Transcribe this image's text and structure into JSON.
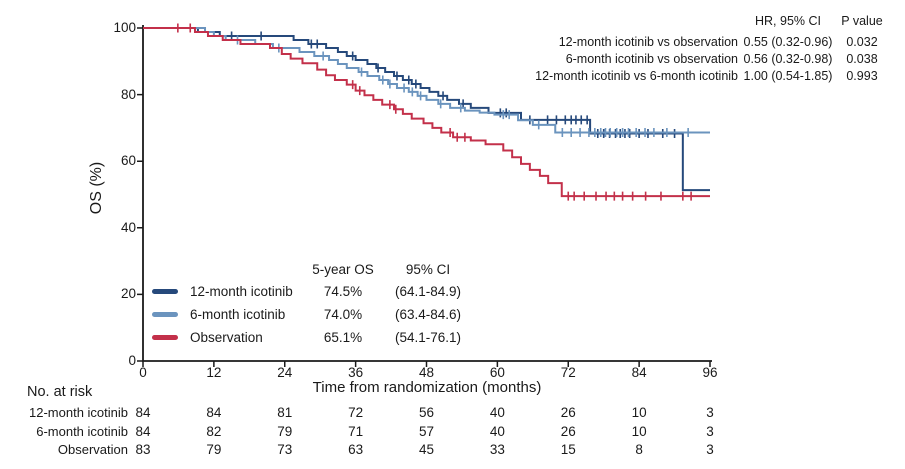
{
  "hr_table": {
    "header": {
      "hr": "HR, 95% CI",
      "p": "P value"
    },
    "rows": [
      {
        "label": "12-month icotinib vs observation",
        "hr": "0.55 (0.32-0.96)",
        "p": "0.032"
      },
      {
        "label": "6-month icotinib vs observation",
        "hr": "0.56 (0.32-0.98)",
        "p": "0.038"
      },
      {
        "label": "12-month icotinib vs 6-month icotinib",
        "hr": "1.00 (0.54-1.85)",
        "p": "0.993"
      }
    ]
  },
  "summary_table": {
    "header": {
      "os": "5-year OS",
      "ci": "95% CI"
    },
    "rows": [
      {
        "label": "12-month icotinib",
        "os": "74.5%",
        "ci": "(64.1-84.9)"
      },
      {
        "label": "6-month icotinib",
        "os": "74.0%",
        "ci": "(63.4-84.6)"
      },
      {
        "label": "Observation",
        "os": "65.1%",
        "ci": "(54.1-76.1)"
      }
    ]
  },
  "at_risk": {
    "title": "No. at risk",
    "rows": [
      {
        "label": "12-month icotinib",
        "counts": [
          84,
          84,
          81,
          72,
          56,
          40,
          26,
          10,
          3
        ]
      },
      {
        "label": "6-month icotinib",
        "counts": [
          84,
          82,
          79,
          71,
          57,
          40,
          26,
          10,
          3
        ]
      },
      {
        "label": "Observation",
        "counts": [
          83,
          79,
          73,
          63,
          45,
          33,
          15,
          8,
          3
        ]
      }
    ]
  },
  "chart_data": {
    "type": "line",
    "subtype": "kaplan-meier-step",
    "title": "",
    "xlabel": "Time from randomization (months)",
    "ylabel": "OS (%)",
    "xlim": [
      0,
      96
    ],
    "ylim": [
      0,
      100
    ],
    "xticks": [
      0,
      12,
      24,
      36,
      48,
      60,
      72,
      84,
      96
    ],
    "yticks": [
      0,
      20,
      40,
      60,
      80,
      100
    ],
    "grid": false,
    "legend_position": "inside-table",
    "axis_color": "#1a1a1a",
    "series": [
      {
        "name": "12-month icotinib",
        "color": "#26497B",
        "points": [
          [
            0,
            100
          ],
          [
            9.3,
            98.8
          ],
          [
            13,
            97.6
          ],
          [
            25.5,
            96.4
          ],
          [
            28,
            95.2
          ],
          [
            31,
            94.0
          ],
          [
            33,
            92.8
          ],
          [
            34.5,
            91.6
          ],
          [
            36,
            90.4
          ],
          [
            38,
            89.2
          ],
          [
            39.5,
            88.0
          ],
          [
            41,
            86.8
          ],
          [
            42.5,
            85.6
          ],
          [
            44,
            84.4
          ],
          [
            45.5,
            83.2
          ],
          [
            47,
            82.0
          ],
          [
            48.5,
            80.8
          ],
          [
            50,
            79.6
          ],
          [
            51.5,
            78.4
          ],
          [
            53.5,
            77.2
          ],
          [
            55.5,
            76.0
          ],
          [
            58.5,
            74.5
          ],
          [
            64,
            72.4
          ],
          [
            75.7,
            68.3
          ],
          [
            91.4,
            51.3
          ]
        ],
        "censors": [
          15,
          20,
          28.5,
          29.5,
          35.5,
          39.8,
          43,
          45,
          46.2,
          50.8,
          54.2,
          60.5,
          61.5,
          65.5,
          68.5,
          70,
          71.5,
          72.5,
          73.3,
          74.2,
          75.2,
          77,
          78,
          79,
          80,
          80.8,
          81.6,
          82.4,
          84,
          85.5,
          88,
          90
        ]
      },
      {
        "name": "6-month icotinib",
        "color": "#6B94BE",
        "points": [
          [
            0,
            100
          ],
          [
            10.5,
            98.8
          ],
          [
            12,
            97.6
          ],
          [
            14,
            96.4
          ],
          [
            19,
            95.2
          ],
          [
            22,
            94.0
          ],
          [
            26.5,
            92.8
          ],
          [
            29,
            91.6
          ],
          [
            31.5,
            90.4
          ],
          [
            33,
            89.2
          ],
          [
            34.5,
            88.0
          ],
          [
            36.5,
            86.8
          ],
          [
            38,
            85.6
          ],
          [
            40,
            84.4
          ],
          [
            41.5,
            83.2
          ],
          [
            43,
            82.0
          ],
          [
            45,
            80.8
          ],
          [
            46.5,
            79.6
          ],
          [
            48,
            78.4
          ],
          [
            50,
            77.2
          ],
          [
            52,
            76.0
          ],
          [
            54.5,
            75.2
          ],
          [
            57,
            74.6
          ],
          [
            59.5,
            74.0
          ],
          [
            63.5,
            72.3
          ],
          [
            66,
            70.9
          ],
          [
            69.8,
            68.6
          ]
        ],
        "censors": [
          16,
          23,
          30.5,
          37,
          40.6,
          41.8,
          44.2,
          45.6,
          47,
          50.4,
          53.8,
          61,
          62,
          67,
          71,
          72.5,
          74,
          75.5,
          76.5,
          77.5,
          78.3,
          79.1,
          80.2,
          81.2,
          82.2,
          83.5,
          85,
          86.5,
          88.7,
          92.3
        ]
      },
      {
        "name": "Observation",
        "color": "#C3304A",
        "points": [
          [
            0,
            100
          ],
          [
            8.8,
            98.8
          ],
          [
            11,
            97.6
          ],
          [
            13.5,
            96.4
          ],
          [
            16.5,
            95.2
          ],
          [
            21.5,
            94.0
          ],
          [
            23.5,
            92.2
          ],
          [
            25,
            90.8
          ],
          [
            27,
            89.4
          ],
          [
            29.5,
            87.5
          ],
          [
            31,
            85.8
          ],
          [
            32.5,
            84.4
          ],
          [
            34.5,
            83.0
          ],
          [
            36,
            81.2
          ],
          [
            37.5,
            79.8
          ],
          [
            39,
            78.4
          ],
          [
            40.5,
            77.0
          ],
          [
            42.5,
            75.6
          ],
          [
            44,
            74.2
          ],
          [
            45.5,
            72.8
          ],
          [
            47.5,
            71.4
          ],
          [
            49,
            70.0
          ],
          [
            50.5,
            68.6
          ],
          [
            52.5,
            67.2
          ],
          [
            55.5,
            66.2
          ],
          [
            58,
            65.1
          ],
          [
            61,
            63.2
          ],
          [
            62.5,
            61.2
          ],
          [
            64,
            59.2
          ],
          [
            65.5,
            57.4
          ],
          [
            67.2,
            55.6
          ],
          [
            68.6,
            53.4
          ],
          [
            70.9,
            49.5
          ]
        ],
        "censors": [
          5.9,
          8,
          35.5,
          36.7,
          41.8,
          42.8,
          52,
          53.2,
          54.5,
          72,
          73,
          74.7,
          76.7,
          78.4,
          79.8,
          81.2,
          82.9,
          85.1,
          87.7,
          91.4,
          92.8
        ]
      }
    ]
  }
}
